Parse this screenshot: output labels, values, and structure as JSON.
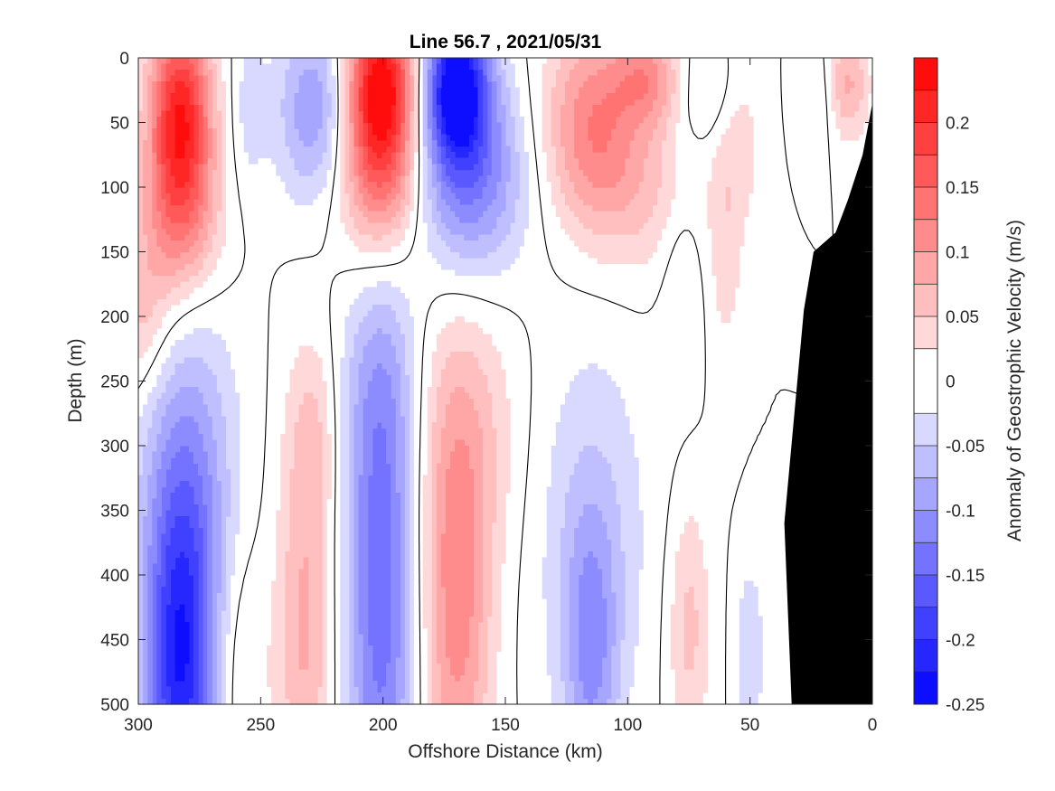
{
  "chart_data": {
    "type": "heatmap",
    "subtype": "filled-contour section",
    "title": "Line 56.7 , 2021/05/31",
    "xlabel": "Offshore Distance (km)",
    "ylabel": "Depth (m)",
    "colorbar_label": "Anomaly of Geostrophic Velocity (m/s)",
    "xlim": [
      300,
      0
    ],
    "x_reversed": true,
    "ylim": [
      500,
      0
    ],
    "y_reversed": true,
    "x_ticks": [
      "300",
      "250",
      "200",
      "150",
      "100",
      "50",
      "0"
    ],
    "y_ticks": [
      "0",
      "50",
      "100",
      "150",
      "200",
      "250",
      "300",
      "350",
      "400",
      "450",
      "500"
    ],
    "colorbar_ticks": [
      "0.2",
      "0.15",
      "0.1",
      "0.05",
      "0",
      "-0.05",
      "-0.1",
      "-0.15",
      "-0.2",
      "-0.25"
    ],
    "colorbar_range": [
      -0.25,
      0.25
    ],
    "contour_levels": [
      -0.225,
      -0.2,
      -0.175,
      -0.15,
      -0.125,
      -0.1,
      -0.075,
      -0.05,
      -0.025,
      0.025,
      0.05,
      0.075,
      0.1,
      0.125,
      0.15,
      0.175,
      0.2,
      0.225
    ],
    "colormap": {
      "negative": "#0000ff",
      "zero": "#ffffff",
      "positive": "#ff0000"
    },
    "bathymetry_color": "#000000",
    "features": [
      {
        "x": 283,
        "depth": 45,
        "amp": 0.22,
        "sx": 9,
        "sy": 55
      },
      {
        "x": 283,
        "depth": 130,
        "amp": 0.09,
        "sx": 12,
        "sy": 45
      },
      {
        "x": 300,
        "depth": 200,
        "amp": 0.06,
        "sx": 10,
        "sy": 45
      },
      {
        "x": 228,
        "depth": 40,
        "amp": -0.1,
        "sx": 11,
        "sy": 50
      },
      {
        "x": 255,
        "depth": 40,
        "amp": -0.035,
        "sx": 5,
        "sy": 50
      },
      {
        "x": 201,
        "depth": 20,
        "amp": 0.24,
        "sx": 10,
        "sy": 45
      },
      {
        "x": 201,
        "depth": 95,
        "amp": 0.12,
        "sx": 12,
        "sy": 45
      },
      {
        "x": 170,
        "depth": 20,
        "amp": -0.24,
        "sx": 9,
        "sy": 40
      },
      {
        "x": 165,
        "depth": 90,
        "amp": -0.13,
        "sx": 16,
        "sy": 55
      },
      {
        "x": 115,
        "depth": 50,
        "amp": 0.11,
        "sx": 14,
        "sy": 55
      },
      {
        "x": 92,
        "depth": 15,
        "amp": 0.09,
        "sx": 10,
        "sy": 25
      },
      {
        "x": 95,
        "depth": 100,
        "amp": 0.05,
        "sx": 18,
        "sy": 50
      },
      {
        "x": 68,
        "depth": 25,
        "amp": -0.04,
        "sx": 9,
        "sy": 30
      },
      {
        "x": 78,
        "depth": 170,
        "amp": -0.03,
        "sx": 6,
        "sy": 60
      },
      {
        "x": 60,
        "depth": 130,
        "amp": 0.04,
        "sx": 5,
        "sy": 80
      },
      {
        "x": 52,
        "depth": 60,
        "amp": 0.03,
        "sx": 5,
        "sy": 50
      },
      {
        "x": 10,
        "depth": 20,
        "amp": 0.08,
        "sx": 6,
        "sy": 30
      },
      {
        "x": 22,
        "depth": 30,
        "amp": -0.03,
        "sx": 5,
        "sy": 30
      },
      {
        "x": 283,
        "depth": 480,
        "amp": -0.2,
        "sx": 10,
        "sy": 100
      },
      {
        "x": 280,
        "depth": 330,
        "amp": -0.09,
        "sx": 14,
        "sy": 100
      },
      {
        "x": 258,
        "depth": 470,
        "amp": 0.035,
        "sx": 8,
        "sy": 70
      },
      {
        "x": 232,
        "depth": 440,
        "amp": 0.08,
        "sx": 8,
        "sy": 120
      },
      {
        "x": 228,
        "depth": 290,
        "amp": 0.035,
        "sx": 7,
        "sy": 50
      },
      {
        "x": 201,
        "depth": 430,
        "amp": -0.14,
        "sx": 10,
        "sy": 130
      },
      {
        "x": 201,
        "depth": 260,
        "amp": -0.06,
        "sx": 11,
        "sy": 70
      },
      {
        "x": 170,
        "depth": 430,
        "amp": 0.11,
        "sx": 10,
        "sy": 120
      },
      {
        "x": 165,
        "depth": 290,
        "amp": 0.045,
        "sx": 16,
        "sy": 80
      },
      {
        "x": 115,
        "depth": 460,
        "amp": -0.09,
        "sx": 8,
        "sy": 80
      },
      {
        "x": 115,
        "depth": 360,
        "amp": -0.045,
        "sx": 18,
        "sy": 110
      },
      {
        "x": 75,
        "depth": 440,
        "amp": 0.06,
        "sx": 6,
        "sy": 70
      },
      {
        "x": 50,
        "depth": 460,
        "amp": -0.05,
        "sx": 4,
        "sy": 50
      }
    ],
    "bathymetry": [
      [
        0,
        35
      ],
      [
        4,
        75
      ],
      [
        10,
        110
      ],
      [
        15,
        135
      ],
      [
        24,
        150
      ],
      [
        28,
        195
      ],
      [
        36,
        360
      ],
      [
        33,
        500
      ],
      [
        0,
        500
      ]
    ]
  }
}
